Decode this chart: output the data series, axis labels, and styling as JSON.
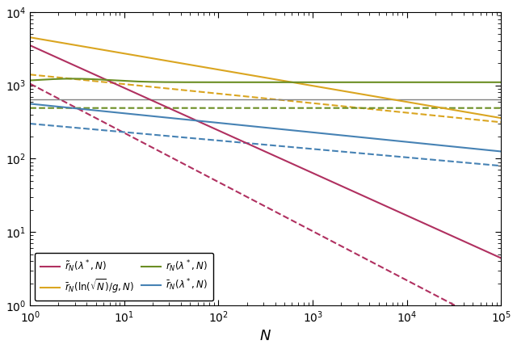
{
  "xlim": [
    1,
    100000
  ],
  "ylim": [
    1,
    10000
  ],
  "xlabel": "$N$",
  "colors": {
    "red": "#B03060",
    "orange": "#DAA520",
    "green": "#6B8E23",
    "blue": "#4682B4",
    "gray": "#808080"
  },
  "gray_hline": 650,
  "red_solid_a": 3500,
  "red_solid_exp": -0.58,
  "red_dashed_a": 1050,
  "red_dashed_exp": -0.67,
  "orange_solid_a": 4500,
  "orange_solid_exp": -0.22,
  "orange_solid_floor": 270,
  "orange_dashed_a": 1400,
  "orange_dashed_exp": -0.13,
  "orange_dashed_floor": 210,
  "green_solid_base": 1100,
  "green_solid_bump": 130,
  "green_dashed_val": 490,
  "blue_solid_a": 560,
  "blue_solid_exp": -0.13,
  "blue_dashed_a": 300,
  "blue_dashed_exp": -0.115
}
